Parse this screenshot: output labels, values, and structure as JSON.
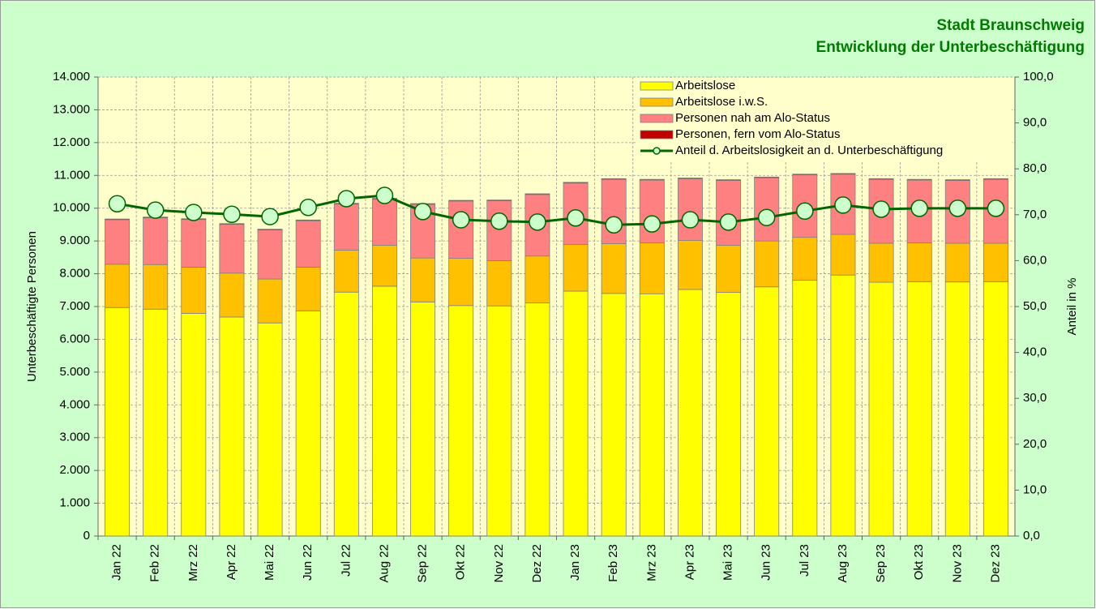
{
  "chart_data": {
    "type": "bar",
    "stacked": true,
    "title": "Stadt Braunschweig",
    "subtitle": "Entwicklung der Unterbeschäftigung",
    "y_label": "Unterbeschäftigte Personen",
    "y2_label": "Anteil in %",
    "categories": [
      "Jan 22",
      "Feb 22",
      "Mrz 22",
      "Apr 22",
      "Mai 22",
      "Jun 22",
      "Jul 22",
      "Aug 22",
      "Sep 22",
      "Okt 22",
      "Nov 22",
      "Dez 22",
      "Jan 23",
      "Feb 23",
      "Mrz 23",
      "Apr 23",
      "Mai 23",
      "Jun 23",
      "Jul 23",
      "Aug 23",
      "Sep 23",
      "Okt 23",
      "Nov 23",
      "Dez 23"
    ],
    "series": [
      {
        "name": "Arbeitslose",
        "color": "#ffff00",
        "values": [
          6970,
          6920,
          6790,
          6680,
          6500,
          6870,
          7440,
          7620,
          7140,
          7030,
          7020,
          7110,
          7470,
          7400,
          7390,
          7520,
          7430,
          7600,
          7800,
          7960,
          7740,
          7760,
          7750,
          7760
        ]
      },
      {
        "name": "Arbeitslose i.w.S.",
        "color": "#ffc000",
        "values": [
          1320,
          1360,
          1410,
          1340,
          1340,
          1330,
          1280,
          1250,
          1340,
          1440,
          1380,
          1430,
          1420,
          1520,
          1550,
          1500,
          1440,
          1400,
          1310,
          1240,
          1190,
          1180,
          1180,
          1170
        ]
      },
      {
        "name": "Personen nah am Alo-Status",
        "color": "#ff8080",
        "values": [
          1355,
          1425,
          1455,
          1485,
          1495,
          1415,
          1405,
          1405,
          1635,
          1745,
          1825,
          1875,
          1875,
          1955,
          1915,
          1875,
          1975,
          1925,
          1905,
          1835,
          1945,
          1915,
          1915,
          1945
        ]
      },
      {
        "name": "Personen, fern vom Alo-Status",
        "color": "#c00000",
        "values": [
          25,
          25,
          25,
          25,
          25,
          25,
          25,
          25,
          25,
          25,
          25,
          25,
          25,
          25,
          25,
          25,
          25,
          25,
          25,
          25,
          25,
          25,
          25,
          25
        ]
      },
      {
        "name": "Anteil d. Arbeitslosigkeit an d. Unterbeschäftigung",
        "color": "#006600",
        "axis": "y2",
        "type": "line",
        "values": [
          72.4,
          71.0,
          70.5,
          70.1,
          69.6,
          71.6,
          73.5,
          74.2,
          70.7,
          68.9,
          68.6,
          68.4,
          69.3,
          67.8,
          68.0,
          68.9,
          68.4,
          69.4,
          70.8,
          72.1,
          71.2,
          71.4,
          71.4,
          71.4
        ]
      }
    ],
    "ylim": [
      0,
      14000
    ],
    "yticks": [
      0,
      {
        "value": 1000,
        "label": "1.000"
      },
      {
        "value": 2000,
        "label": "2.000"
      },
      {
        "value": 3000,
        "label": "3.000"
      },
      {
        "value": 4000,
        "label": "4.000"
      },
      {
        "value": 5000,
        "label": "5.000"
      },
      {
        "value": 6000,
        "label": "6.000"
      },
      {
        "value": 7000,
        "label": "7.000"
      },
      {
        "value": 8000,
        "label": "8.000"
      },
      {
        "value": 9000,
        "label": "9.000"
      },
      {
        "value": 10000,
        "label": "10.000"
      },
      {
        "value": 11000,
        "label": "11.000"
      },
      {
        "value": 12000,
        "label": "12.000"
      },
      {
        "value": 13000,
        "label": "13.000"
      },
      {
        "value": 14000,
        "label": "14.000"
      }
    ],
    "y2lim": [
      0,
      100
    ],
    "y2ticks": [
      {
        "value": 0,
        "label": "0,0"
      },
      {
        "value": 10,
        "label": "10,0"
      },
      {
        "value": 20,
        "label": "20,0"
      },
      {
        "value": 30,
        "label": "30,0"
      },
      {
        "value": 40,
        "label": "40,0"
      },
      {
        "value": 50,
        "label": "50,0"
      },
      {
        "value": 60,
        "label": "60,0"
      },
      {
        "value": 70,
        "label": "70,0"
      },
      {
        "value": 80,
        "label": "80,0"
      },
      {
        "value": 90,
        "label": "90,0"
      },
      {
        "value": 100,
        "label": "100,0"
      }
    ],
    "grid": true,
    "legend": "top-right"
  }
}
